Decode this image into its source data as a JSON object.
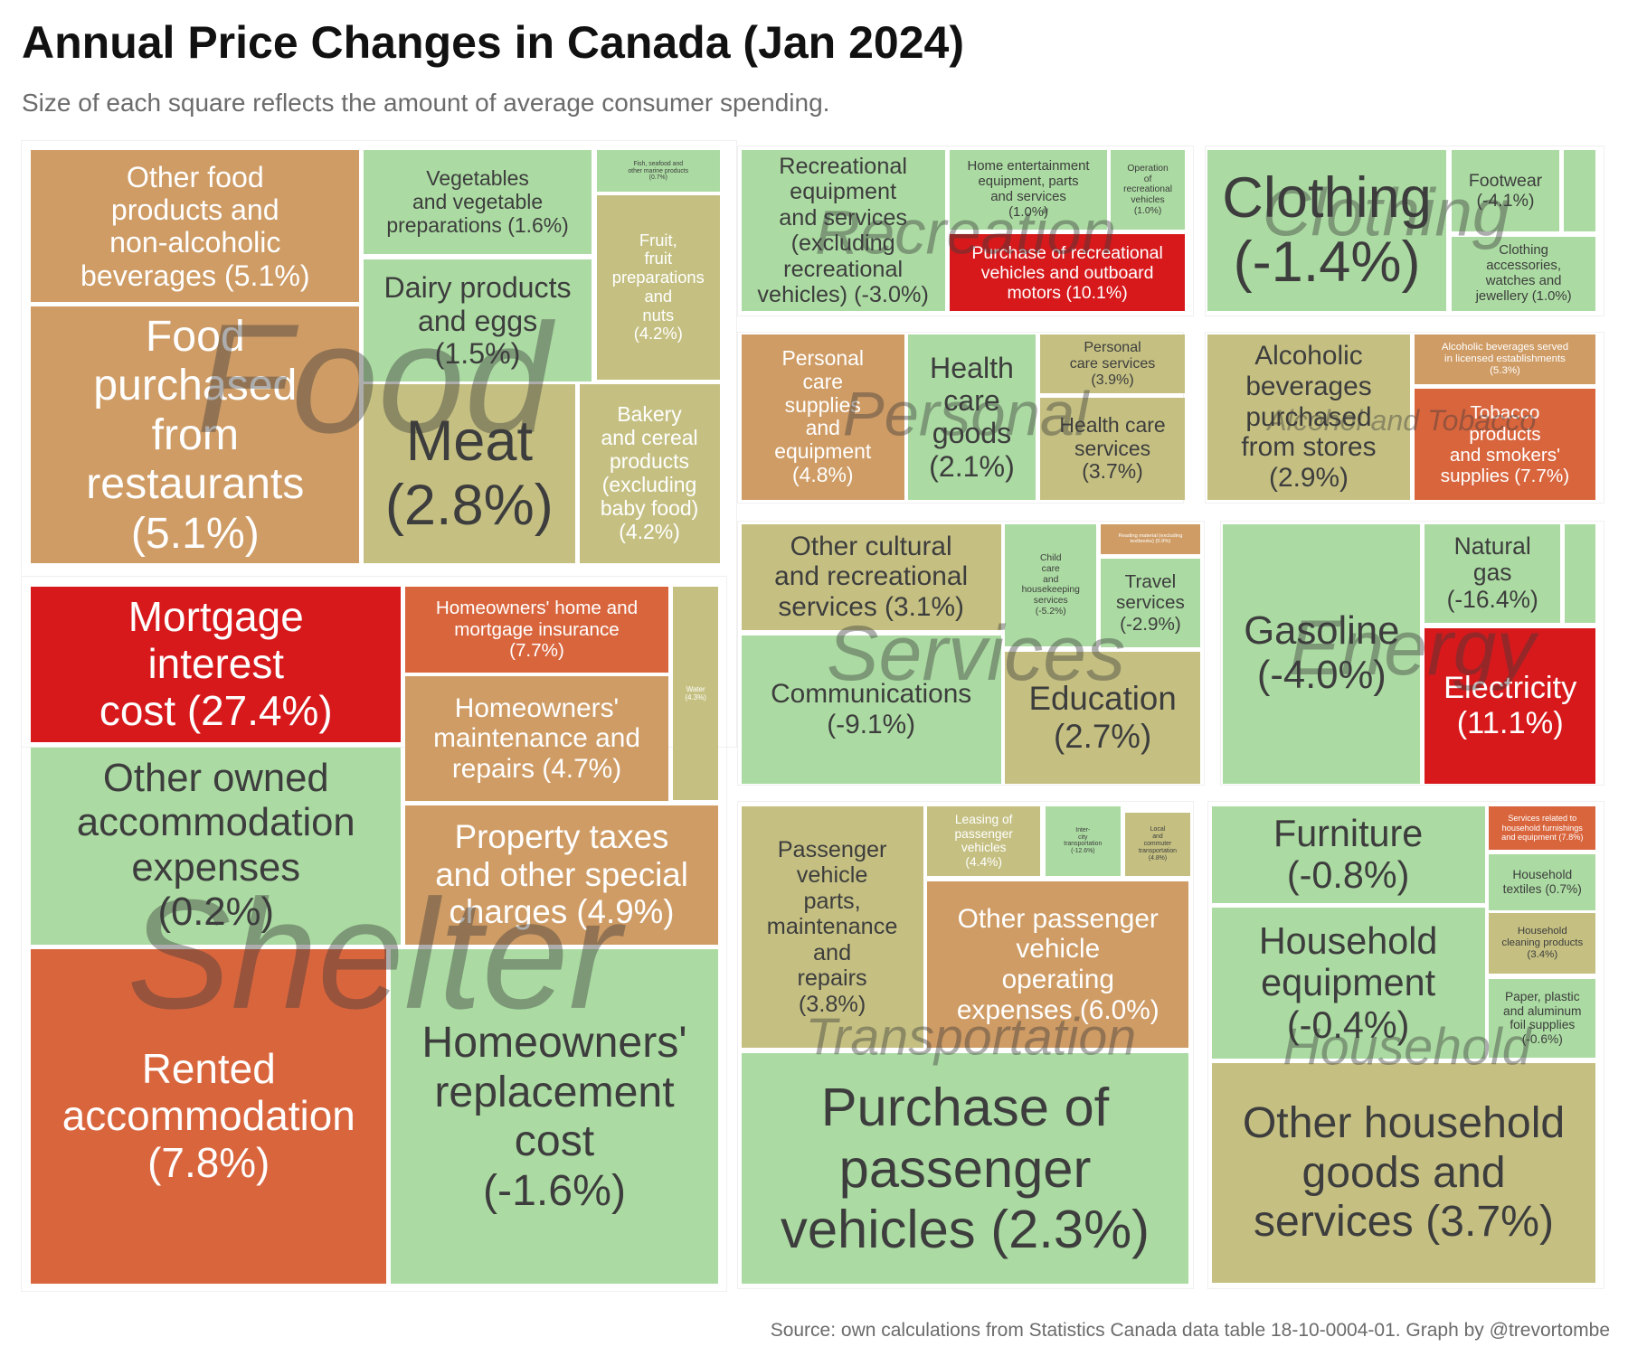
{
  "title": "Annual Price Changes in Canada (Jan 2024)",
  "subtitle": "Size of each square reflects the amount of average consumer spending.",
  "caption": "Source: own calculations from Statistics Canada data table 18-10-0004-01. Graph by @trevortombe",
  "chart_data": {
    "type": "treemap",
    "value_label": "annual price change (%)",
    "colors": {
      "decrease": "#abdba2",
      "low": "#c5c082",
      "mid": "#cf9c65",
      "high": "#d9653d",
      "very_high": "#d7191c"
    },
    "groups": [
      {
        "name": "Food",
        "items": [
          {
            "label": "Other food\nproducts and\nnon-alcoholic\nbeverages (5.1%)",
            "value": 5.1
          },
          {
            "label": "Food\npurchased\nfrom\nrestaurants\n(5.1%)",
            "value": 5.1
          },
          {
            "label": "Vegetables\nand vegetable\npreparations (1.6%)",
            "value": 1.6
          },
          {
            "label": "Fish, seafood and\nother marine products\n(0.7%)",
            "value": 0.7
          },
          {
            "label": "Dairy products\nand eggs\n(1.5%)",
            "value": 1.5
          },
          {
            "label": "Fruit,\nfruit\npreparations\nand\nnuts\n(4.2%)",
            "value": 4.2
          },
          {
            "label": "Meat\n(2.8%)",
            "value": 2.8
          },
          {
            "label": "Bakery\nand cereal\nproducts\n(excluding\nbaby food)\n(4.2%)",
            "value": 4.2
          }
        ]
      },
      {
        "name": "Shelter",
        "items": [
          {
            "label": "Mortgage\ninterest\ncost (27.4%)",
            "value": 27.4
          },
          {
            "label": "Homeowners' home and\nmortgage insurance\n(7.7%)",
            "value": 7.7
          },
          {
            "label": "Water\n(4.3%)",
            "value": 4.3
          },
          {
            "label": "Homeowners'\nmaintenance and\nrepairs (4.7%)",
            "value": 4.7
          },
          {
            "label": "Other owned\naccommodation\nexpenses\n(0.2%)",
            "value": 0.2
          },
          {
            "label": "Property taxes\nand other special\ncharges (4.9%)",
            "value": 4.9
          },
          {
            "label": "Rented\naccommodation\n(7.8%)",
            "value": 7.8
          },
          {
            "label": "Homeowners'\nreplacement\ncost\n(-1.6%)",
            "value": -1.6
          }
        ]
      },
      {
        "name": "Recreation",
        "items": [
          {
            "label": "Recreational\nequipment\nand services\n(excluding\nrecreational\nvehicles) (-3.0%)",
            "value": -3.0
          },
          {
            "label": "Home entertainment\nequipment, parts\nand services\n(1.0%)",
            "value": 1.0
          },
          {
            "label": "Operation\nof\nrecreational\nvehicles\n(1.0%)",
            "value": 1.0
          },
          {
            "label": "Purchase of recreational\nvehicles and outboard\nmotors (10.1%)",
            "value": 10.1
          }
        ]
      },
      {
        "name": "Clothing",
        "items": [
          {
            "label": "Clothing\n(-1.4%)",
            "value": -1.4
          },
          {
            "label": "Footwear\n(-4.1%)",
            "value": -4.1
          },
          {
            "label": "",
            "value": null
          },
          {
            "label": "Clothing\naccessories,\nwatches and\njewellery (1.0%)",
            "value": 1.0
          }
        ]
      },
      {
        "name": "Personal",
        "items": [
          {
            "label": "Personal\ncare\nsupplies\nand\nequipment\n(4.8%)",
            "value": 4.8
          },
          {
            "label": "Health\ncare\ngoods\n(2.1%)",
            "value": 2.1
          },
          {
            "label": "Personal\ncare services\n(3.9%)",
            "value": 3.9
          },
          {
            "label": "Health care\nservices\n(3.7%)",
            "value": 3.7
          }
        ]
      },
      {
        "name": "Alcohol and Tobacco",
        "items": [
          {
            "label": "Alcoholic\nbeverages\npurchased\nfrom stores\n(2.9%)",
            "value": 2.9
          },
          {
            "label": "Alcoholic beverages served\nin licensed establishments\n(5.3%)",
            "value": 5.3
          },
          {
            "label": "Tobacco\nproducts\nand smokers'\nsupplies (7.7%)",
            "value": 7.7
          }
        ]
      },
      {
        "name": "Services",
        "items": [
          {
            "label": "Other cultural\nand recreational\nservices (3.1%)",
            "value": 3.1
          },
          {
            "label": "Child\ncare\nand\nhousekeeping\nservices\n(-5.2%)",
            "value": -5.2
          },
          {
            "label": "Reading material (excluding\ntextbooks) (5.9%)",
            "value": 5.9
          },
          {
            "label": "Travel\nservices\n(-2.9%)",
            "value": -2.9
          },
          {
            "label": "Communications\n(-9.1%)",
            "value": -9.1
          },
          {
            "label": "Education\n(2.7%)",
            "value": 2.7
          }
        ]
      },
      {
        "name": "Energy",
        "items": [
          {
            "label": "Gasoline\n(-4.0%)",
            "value": -4.0
          },
          {
            "label": "Natural\ngas\n(-16.4%)",
            "value": -16.4
          },
          {
            "label": "",
            "value": null
          },
          {
            "label": "Electricity\n(11.1%)",
            "value": 11.1
          }
        ]
      },
      {
        "name": "Transportation",
        "items": [
          {
            "label": "Passenger\nvehicle\nparts,\nmaintenance\nand\nrepairs\n(3.8%)",
            "value": 3.8
          },
          {
            "label": "Leasing of\npassenger\nvehicles\n(4.4%)",
            "value": 4.4
          },
          {
            "label": "Inter-\ncity\ntransportation\n(-12.6%)",
            "value": -12.6
          },
          {
            "label": "Local\nand\ncommuter\ntransportation\n(4.8%)",
            "value": 4.8
          },
          {
            "label": "Other passenger\nvehicle\noperating\nexpenses (6.0%)",
            "value": 6.0
          },
          {
            "label": "Purchase of\npassenger\nvehicles (2.3%)",
            "value": 2.3
          }
        ]
      },
      {
        "name": "Household",
        "items": [
          {
            "label": "Furniture\n(-0.8%)",
            "value": -0.8
          },
          {
            "label": "Services related to\nhousehold furnishings\nand equipment (7.8%)",
            "value": 7.8
          },
          {
            "label": "Household\ntextiles (0.7%)",
            "value": 0.7
          },
          {
            "label": "Household\nequipment\n(-0.4%)",
            "value": -0.4
          },
          {
            "label": "Household\ncleaning products\n(3.4%)",
            "value": 3.4
          },
          {
            "label": "Paper, plastic\nand aluminum\nfoil supplies\n(-0.6%)",
            "value": -0.6
          },
          {
            "label": "Other household\ngoods and\nservices (3.7%)",
            "value": 3.7
          }
        ]
      }
    ]
  }
}
